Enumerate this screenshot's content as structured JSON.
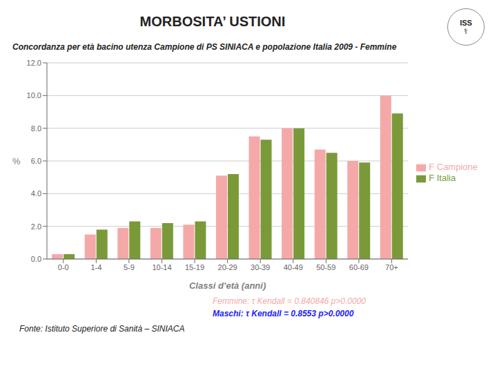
{
  "chart_data": {
    "type": "bar",
    "title": "MORBOSITA’ USTIONI",
    "subtitle": "Concordanza per età bacino utenza Campione di PS SINIACA e popolazione Italia 2009 - Femmine",
    "categories": [
      "0-0",
      "1-4",
      "5-9",
      "10-14",
      "15-19",
      "20-29",
      "30-39",
      "40-49",
      "50-59",
      "60-69",
      "70+"
    ],
    "series": [
      {
        "name": "F Campione",
        "color": "#F4A9A8",
        "values": [
          0.3,
          1.5,
          1.9,
          1.9,
          2.1,
          5.1,
          7.5,
          8.0,
          6.7,
          6.0,
          10.0
        ]
      },
      {
        "name": "F Italia",
        "color": "#7A9A3A",
        "values": [
          0.3,
          1.8,
          2.3,
          2.2,
          2.3,
          5.2,
          7.3,
          8.0,
          6.5,
          5.9,
          8.9
        ]
      }
    ],
    "ylabel": "%",
    "xlabel": "Classi d’età (anni)",
    "ylim": [
      0,
      12.0
    ],
    "yticks": [
      {
        "value": 0,
        "label": "0.0"
      },
      {
        "value": 2,
        "label": "2.0"
      },
      {
        "value": 4,
        "label": "4.0"
      },
      {
        "value": 6,
        "label": "6.0"
      },
      {
        "value": 8,
        "label": "8.0"
      },
      {
        "value": 10,
        "label": "10.0"
      },
      {
        "value": 12,
        "label": "12.0"
      }
    ],
    "grid": true,
    "legend": "right",
    "annotations": [
      {
        "text": "Femmine: τ Kendall = 0.840846 p>0.0000",
        "color": "#F4A9A8"
      },
      {
        "text": "Maschi: τ Kendall = 0.8553 p>0.0000",
        "color": "#2222FF"
      },
      {
        "text": "Fonte: Istituto Superiore di Sanità – SINIACA"
      },
      {
        "text": "ISS"
      },
      {
        "text": "⚕"
      }
    ]
  }
}
